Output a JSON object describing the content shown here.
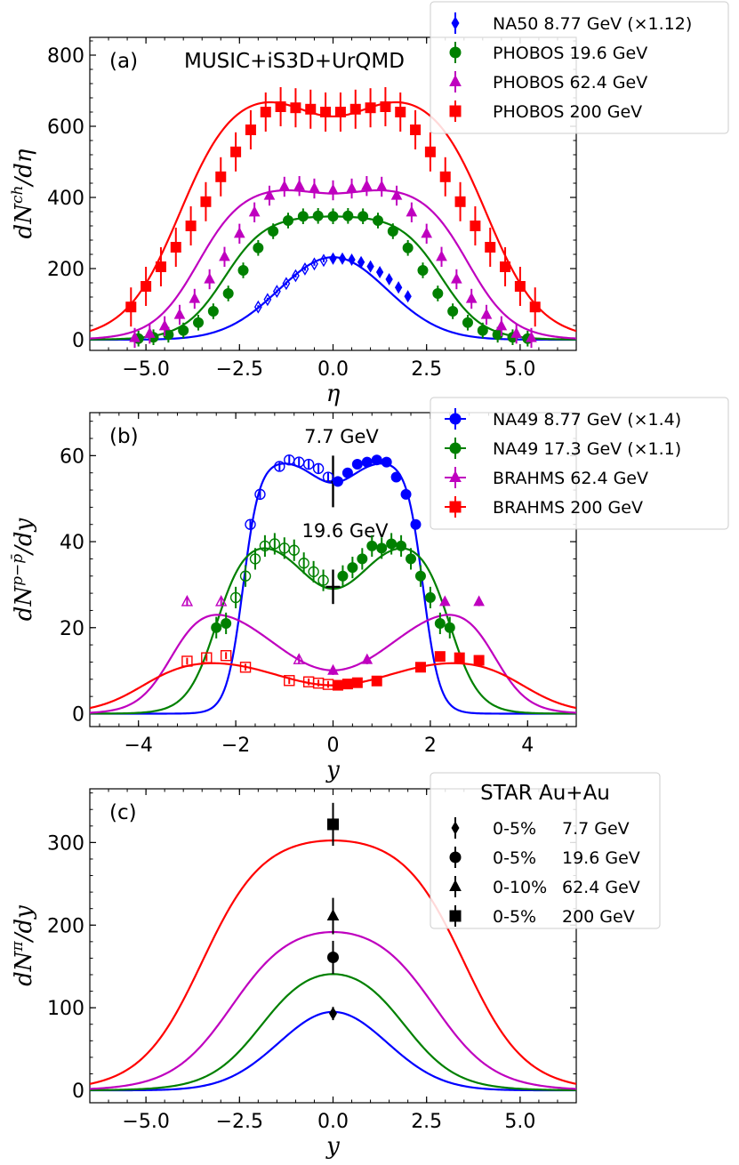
{
  "colors": {
    "blue": "#0000ff",
    "green": "#008000",
    "magenta": "#bf00bf",
    "red": "#ff0000",
    "black": "#000000"
  },
  "chart_data": [
    {
      "type": "line",
      "panel": "(a)",
      "title": "MUSIC+iS3D+UrQMD",
      "xlabel": "η",
      "ylabel": "dN^ch/dη",
      "xlim": [
        -6.5,
        6.5
      ],
      "ylim": [
        -30,
        850
      ],
      "xticks": [
        "−5.0",
        "−2.5",
        "0.0",
        "2.5",
        "5.0"
      ],
      "yticks": [
        "0",
        "200",
        "400",
        "600",
        "800"
      ],
      "legend": {
        "location": "upper right",
        "entries": [
          "NA50 8.77 GeV (×1.12)",
          "PHOBOS 19.6 GeV",
          "PHOBOS 62.4 GeV",
          "PHOBOS 200 GeV"
        ]
      },
      "model_curves": [
        {
          "name": "8.77 GeV model",
          "color": "blue",
          "kind": "gauss",
          "peak": 232,
          "sigma": 1.45
        },
        {
          "name": "19.6 GeV model",
          "color": "green",
          "kind": "plateau",
          "peak": 350,
          "half_width": 2.9,
          "edge": 0.55
        },
        {
          "name": "62.4 GeV model",
          "color": "magenta",
          "kind": "dip",
          "peak": 435,
          "half_width": 3.6,
          "edge": 0.6,
          "dip": 0.05,
          "dip_sigma": 0.8
        },
        {
          "name": "200 GeV model",
          "color": "red",
          "kind": "dip",
          "peak": 710,
          "half_width": 4.1,
          "edge": 0.72,
          "dip": 0.11,
          "dip_sigma": 1.0
        }
      ],
      "series": [
        {
          "name": "NA50 8.77 GeV (×1.12)",
          "color": "blue",
          "marker": "diamond",
          "x": [
            -2.0,
            -1.75,
            -1.5,
            -1.25,
            -1.0,
            -0.75,
            -0.5,
            -0.25,
            0.0,
            0.25,
            0.5,
            0.75,
            1.0,
            1.25,
            1.5,
            1.75,
            2.0
          ],
          "y": [
            92,
            113,
            136,
            158,
            180,
            199,
            213,
            223,
            228,
            228,
            225,
            218,
            206,
            190,
            170,
            147,
            122
          ],
          "err": 5
        },
        {
          "name": "PHOBOS 19.6 GeV",
          "color": "green",
          "marker": "circle",
          "x": [
            -5.2,
            -4.8,
            -4.4,
            -4.0,
            -3.6,
            -3.2,
            -2.8,
            -2.4,
            -2.0,
            -1.6,
            -1.2,
            -0.8,
            -0.4,
            0.0,
            0.4,
            0.8,
            1.2,
            1.6,
            2.0,
            2.4,
            2.8,
            3.2,
            3.6,
            4.0,
            4.4,
            4.8,
            5.2
          ],
          "y": [
            3,
            7,
            14,
            26,
            48,
            80,
            130,
            195,
            258,
            305,
            335,
            347,
            348,
            347,
            348,
            347,
            335,
            305,
            258,
            195,
            130,
            80,
            48,
            26,
            14,
            7,
            3
          ],
          "err": 22
        },
        {
          "name": "PHOBOS 62.4 GeV",
          "color": "magenta",
          "marker": "triangle",
          "x": [
            -5.3,
            -4.9,
            -4.5,
            -4.1,
            -3.7,
            -3.3,
            -2.9,
            -2.5,
            -2.1,
            -1.7,
            -1.3,
            -0.9,
            -0.5,
            0.0,
            0.5,
            0.9,
            1.3,
            1.7,
            2.1,
            2.5,
            2.9,
            3.3,
            3.7,
            4.1,
            4.5,
            4.9,
            5.3
          ],
          "y": [
            5,
            17,
            38,
            70,
            115,
            170,
            233,
            298,
            358,
            405,
            430,
            432,
            425,
            420,
            425,
            432,
            430,
            405,
            358,
            298,
            233,
            170,
            115,
            70,
            38,
            17,
            5
          ],
          "err": 28
        },
        {
          "name": "PHOBOS 200 GeV",
          "color": "red",
          "marker": "square",
          "x": [
            -5.4,
            -5.0,
            -4.6,
            -4.2,
            -3.8,
            -3.4,
            -3.0,
            -2.6,
            -2.2,
            -1.8,
            -1.4,
            -1.0,
            -0.6,
            -0.2,
            0.2,
            0.6,
            1.0,
            1.4,
            1.8,
            2.2,
            2.6,
            3.0,
            3.4,
            3.8,
            4.2,
            4.6,
            5.0,
            5.4
          ],
          "y": [
            92,
            150,
            205,
            260,
            320,
            388,
            458,
            528,
            590,
            640,
            655,
            652,
            648,
            640,
            640,
            648,
            652,
            655,
            640,
            590,
            528,
            458,
            388,
            320,
            260,
            205,
            150,
            92
          ],
          "err": 55
        }
      ]
    },
    {
      "type": "line",
      "panel": "(b)",
      "xlabel": "y",
      "ylabel": "dN^{p−p̄}/dy",
      "xlim": [
        -5,
        5
      ],
      "ylim": [
        -3,
        70
      ],
      "xticks": [
        "−4",
        "−2",
        "0",
        "2",
        "4"
      ],
      "yticks": [
        "0",
        "20",
        "40",
        "60"
      ],
      "annotations": [
        "7.7 GeV",
        "19.6 GeV"
      ],
      "legend": {
        "location": "upper right",
        "entries": [
          "NA49 8.77 GeV (×1.4)",
          "NA49 17.3 GeV (×1.1)",
          "BRAHMS 62.4 GeV",
          "BRAHMS 200 GeV"
        ]
      },
      "star_points": [
        {
          "label": "7.7 GeV",
          "x": 0,
          "y": 54,
          "err": 6
        },
        {
          "label": "19.6 GeV",
          "x": 0,
          "y": 29.5,
          "err": 4
        }
      ],
      "model_curves": [
        {
          "name": "8.77 GeV model",
          "color": "blue",
          "kind": "dip",
          "peak": 59,
          "half_width": 1.85,
          "edge": 0.17,
          "dip": 0.09,
          "dip_sigma": 0.45
        },
        {
          "name": "17.3 GeV model",
          "color": "green",
          "kind": "dip",
          "peak": 41.5,
          "half_width": 2.4,
          "edge": 0.3,
          "dip": 0.3,
          "dip_sigma": 0.7
        },
        {
          "name": "62.4 GeV model",
          "color": "magenta",
          "kind": "dip",
          "peak": 28,
          "half_width": 3.3,
          "edge": 0.35,
          "dip": 0.64,
          "dip_sigma": 1.3
        },
        {
          "name": "200 GeV model",
          "color": "red",
          "kind": "dip",
          "peak": 13.2,
          "half_width": 3.9,
          "edge": 0.5,
          "dip": 0.5,
          "dip_sigma": 1.2
        }
      ],
      "series": [
        {
          "name": "NA49 8.77 GeV (×1.4)",
          "color": "blue",
          "marker": "circle",
          "x": [
            -1.7,
            -1.5,
            -1.1,
            -0.9,
            -0.7,
            -0.5,
            -0.3,
            -0.1,
            0.1,
            0.3,
            0.5,
            0.7,
            0.9,
            1.1,
            1.3,
            1.5,
            1.7
          ],
          "y": [
            44,
            51,
            57.5,
            59,
            58.5,
            58,
            57,
            55,
            54,
            56,
            58,
            58.5,
            59,
            58.5,
            55,
            51,
            44
          ],
          "err": 1
        },
        {
          "name": "NA49 17.3 GeV (×1.1)",
          "color": "green",
          "marker": "circle",
          "x": [
            -2.4,
            -2.2,
            -2.0,
            -1.8,
            -1.6,
            -1.4,
            -1.2,
            -1.0,
            -0.8,
            -0.6,
            -0.4,
            -0.2,
            0.2,
            0.4,
            0.6,
            0.8,
            1.0,
            1.2,
            1.4,
            1.6,
            1.8,
            2.0,
            2.2,
            2.4
          ],
          "y": [
            20,
            21,
            27,
            32,
            36,
            39,
            39.5,
            38.5,
            38,
            35,
            33,
            31,
            32,
            34,
            36,
            39,
            38.5,
            39.5,
            39,
            36,
            32,
            27,
            21,
            20
          ],
          "err": 2.5
        },
        {
          "name": "BRAHMS 62.4 GeV",
          "color": "magenta",
          "marker": "triangle",
          "x": [
            -3.0,
            -2.3,
            -0.7,
            0.0,
            0.7,
            2.3,
            3.0
          ],
          "y": [
            26,
            26,
            12.5,
            10,
            12.5,
            26,
            26
          ],
          "err": 1
        },
        {
          "name": "BRAHMS 200 GeV",
          "color": "red",
          "marker": "square",
          "x": [
            -3.0,
            -2.6,
            -2.2,
            -1.8,
            -0.9,
            -0.5,
            -0.3,
            -0.1,
            0.1,
            0.3,
            0.5,
            0.9,
            1.8,
            2.2,
            2.6,
            3.0
          ],
          "y": [
            12.2,
            13,
            13.5,
            10.8,
            7.7,
            7.4,
            7.1,
            6.8,
            6.6,
            6.9,
            7.2,
            7.6,
            10.8,
            13.3,
            13,
            12.4
          ],
          "err": 0.8
        }
      ]
    },
    {
      "type": "line",
      "panel": "(c)",
      "xlabel": "y",
      "ylabel": "dN^π/dy",
      "xlim": [
        -6.5,
        6.5
      ],
      "ylim": [
        -15,
        365
      ],
      "xticks": [
        "−5.0",
        "−2.5",
        "0.0",
        "2.5",
        "5.0"
      ],
      "yticks": [
        "0",
        "100",
        "200",
        "300"
      ],
      "legend": {
        "location": "upper right",
        "title": "STAR Au+Au",
        "entries": [
          {
            "centrality": "0-5%",
            "energy": "7.7 GeV"
          },
          {
            "centrality": "0-5%",
            "energy": "19.6 GeV"
          },
          {
            "centrality": "0-10%",
            "energy": "62.4 GeV"
          },
          {
            "centrality": "0-5%",
            "energy": "200 GeV"
          }
        ]
      },
      "model_curves": [
        {
          "name": "7.7 GeV model",
          "color": "blue",
          "kind": "gauss",
          "peak": 95,
          "sigma": 1.45
        },
        {
          "name": "19.6 GeV model",
          "color": "green",
          "kind": "plateau",
          "peak": 160,
          "half_width": 1.9,
          "edge": 0.7
        },
        {
          "name": "62.4 GeV model",
          "color": "magenta",
          "kind": "plateau",
          "peak": 205,
          "half_width": 2.7,
          "edge": 0.8
        },
        {
          "name": "200 GeV model",
          "color": "red",
          "kind": "plateau",
          "peak": 311,
          "half_width": 3.5,
          "edge": 0.82
        }
      ],
      "series": [
        {
          "name": "0-5% 7.7 GeV",
          "color": "black",
          "marker": "diamond",
          "x": [
            0
          ],
          "y": [
            93
          ],
          "err": 8
        },
        {
          "name": "0-5% 19.6 GeV",
          "color": "black",
          "marker": "circle",
          "x": [
            0
          ],
          "y": [
            161
          ],
          "err": 20
        },
        {
          "name": "0-10% 62.4 GeV",
          "color": "black",
          "marker": "triangle",
          "x": [
            0
          ],
          "y": [
            211
          ],
          "err": 22
        },
        {
          "name": "0-5% 200 GeV",
          "color": "black",
          "marker": "square",
          "x": [
            0
          ],
          "y": [
            322
          ],
          "err": 26
        }
      ]
    }
  ]
}
